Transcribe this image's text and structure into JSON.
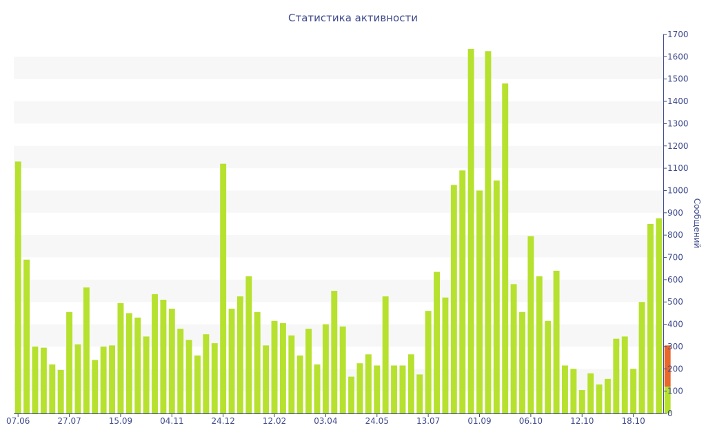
{
  "chart_data": {
    "type": "bar",
    "title": "Статистика активности",
    "ylabel": "Сообщений",
    "xlabel": "",
    "ylim": [
      0,
      1700
    ],
    "yticks": [
      0,
      100,
      200,
      300,
      400,
      500,
      600,
      700,
      800,
      900,
      1000,
      1100,
      1200,
      1300,
      1400,
      1500,
      1600,
      1700
    ],
    "grid": "alternating horizontal bands",
    "colors": {
      "bar": "#b6e12f",
      "highlight": "#e8672c",
      "axis": "#3e4a8c",
      "band": "#f7f7f7"
    },
    "xticks": [
      {
        "index": 0,
        "label": "07.06"
      },
      {
        "index": 6,
        "label": "27.07"
      },
      {
        "index": 12,
        "label": "15.09"
      },
      {
        "index": 18,
        "label": "04.11"
      },
      {
        "index": 24,
        "label": "24.12"
      },
      {
        "index": 30,
        "label": "12.02"
      },
      {
        "index": 36,
        "label": "03.04"
      },
      {
        "index": 42,
        "label": "24.05"
      },
      {
        "index": 48,
        "label": "13.07"
      },
      {
        "index": 54,
        "label": "01.09"
      },
      {
        "index": 60,
        "label": "06.10"
      },
      {
        "index": 66,
        "label": "12.10"
      },
      {
        "index": 72,
        "label": "18.10"
      }
    ],
    "values": [
      1130,
      690,
      300,
      295,
      220,
      195,
      455,
      310,
      565,
      240,
      300,
      305,
      495,
      450,
      430,
      345,
      535,
      510,
      470,
      380,
      330,
      260,
      355,
      315,
      1120,
      470,
      525,
      615,
      455,
      305,
      415,
      405,
      350,
      260,
      380,
      220,
      400,
      550,
      390,
      165,
      225,
      265,
      215,
      525,
      215,
      215,
      265,
      175,
      460,
      635,
      520,
      1025,
      1090,
      1635,
      1000,
      1625,
      1045,
      1480,
      580,
      455,
      795,
      615,
      415,
      640,
      215,
      200,
      105,
      180,
      130,
      155,
      335,
      345,
      200,
      500,
      850,
      875
    ],
    "highlight_bar": {
      "index": 76,
      "range": [
        120,
        305
      ]
    }
  }
}
